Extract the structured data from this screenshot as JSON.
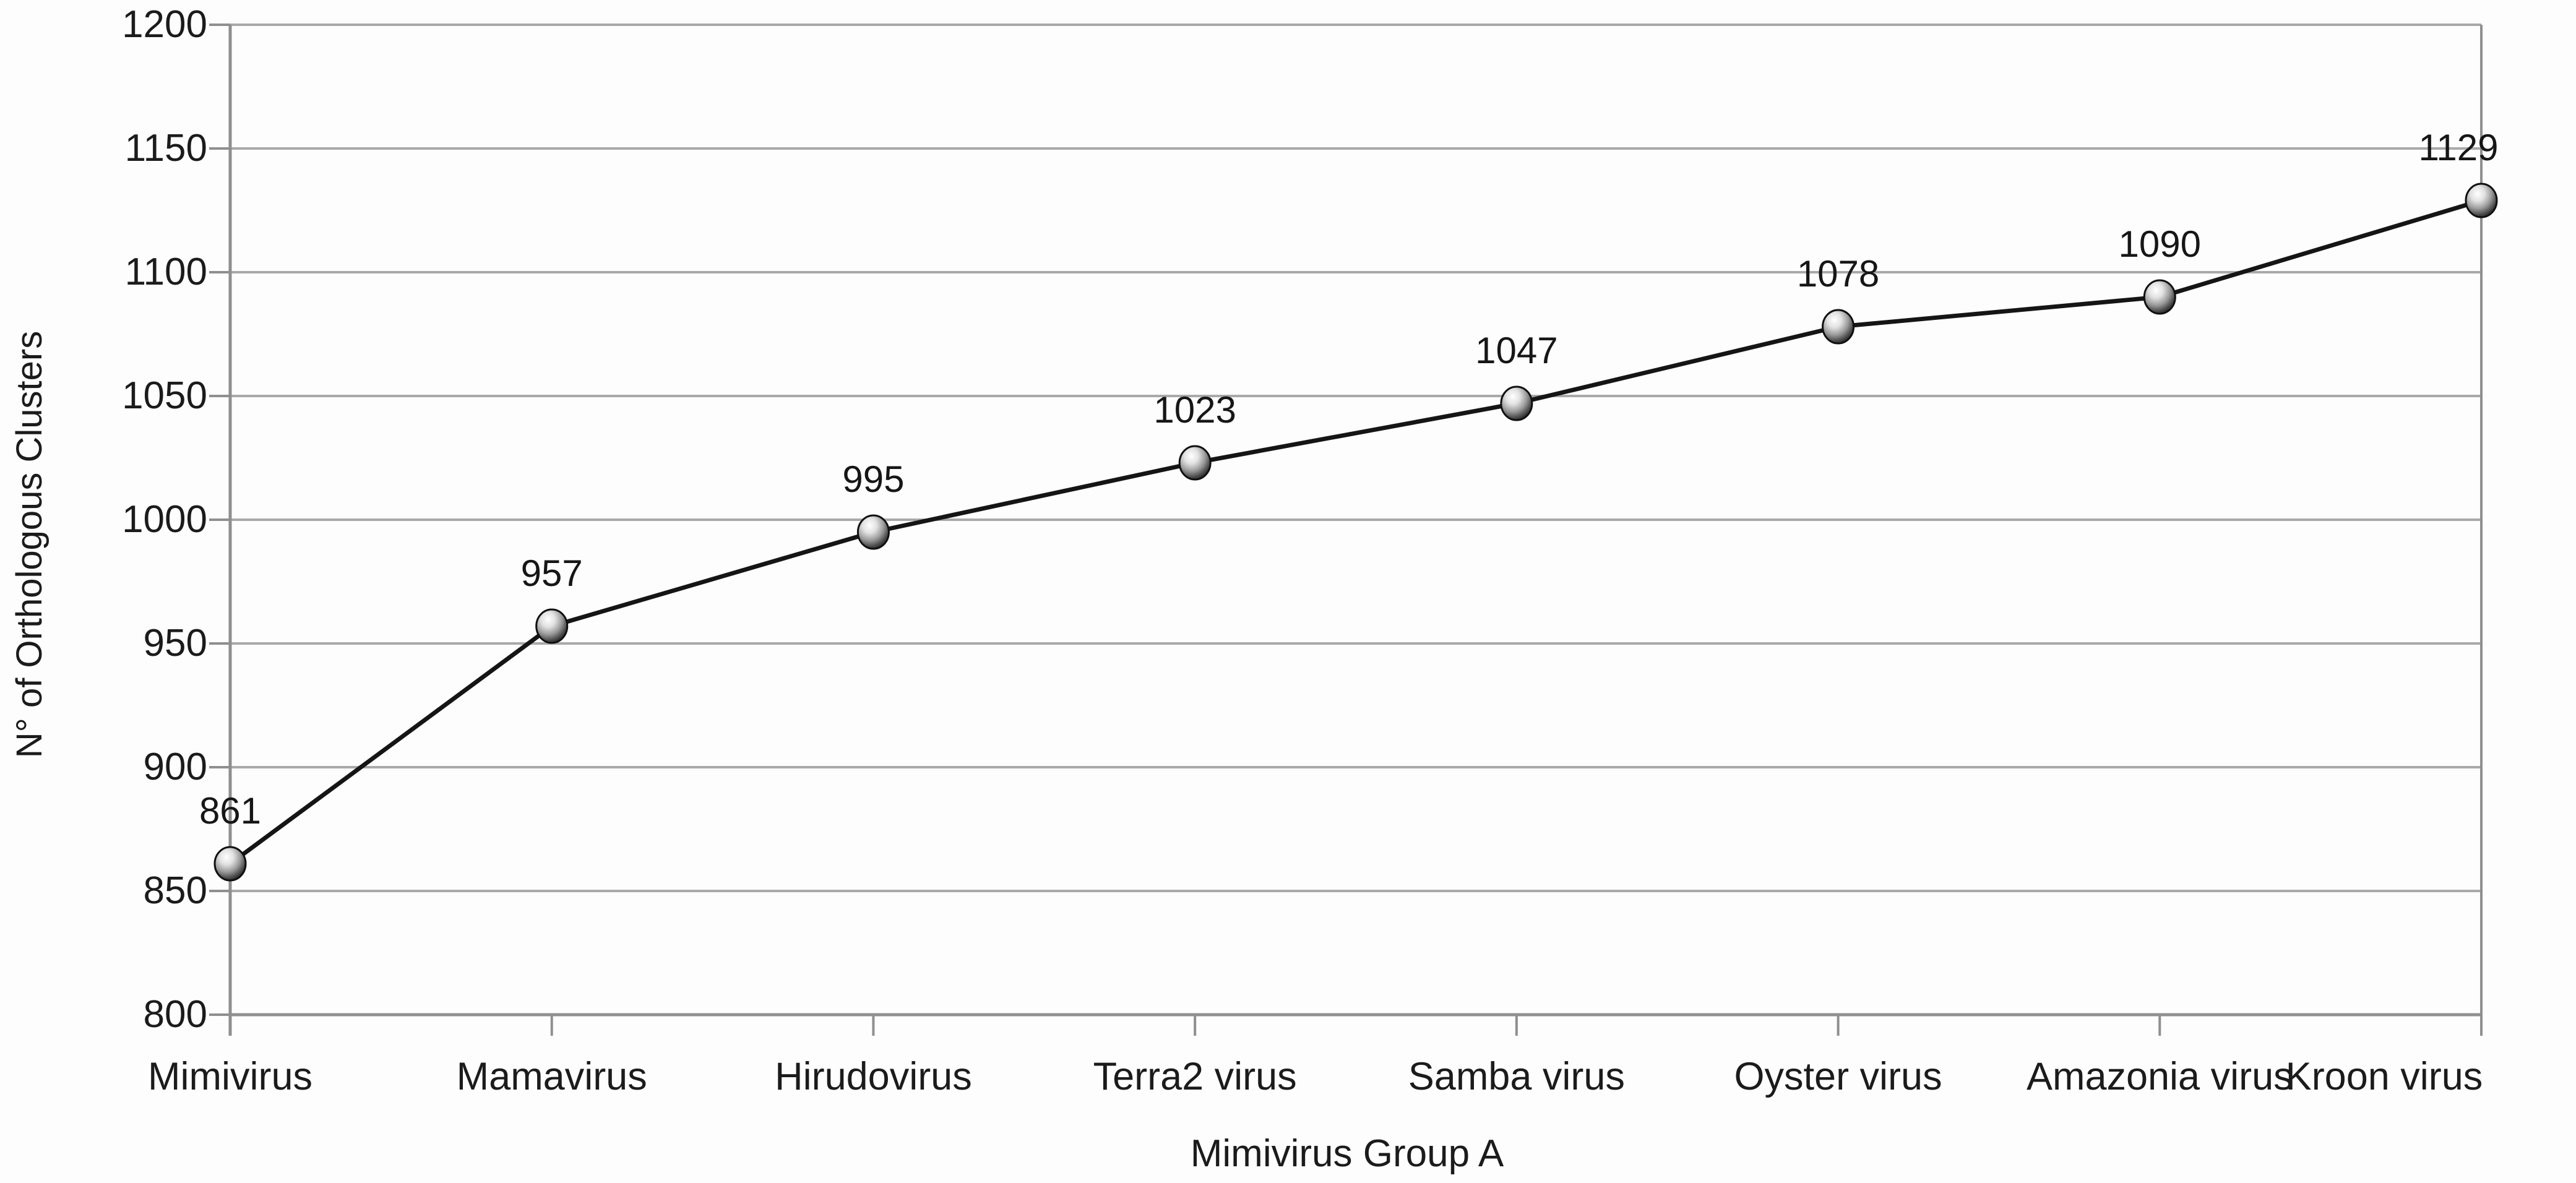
{
  "chart_data": {
    "type": "line",
    "title": "",
    "xlabel": "Mimivirus Group A",
    "ylabel": "N° of Orthologous Clusters",
    "categories": [
      "Mimivirus",
      "Mamavirus",
      "Hirudovirus",
      "Terra2 virus",
      "Samba virus",
      "Oyster virus",
      "Amazonia virus",
      "Kroon virus"
    ],
    "series": [
      {
        "name": "N° of Orthologous Clusters",
        "values": [
          861,
          957,
          995,
          1023,
          1047,
          1078,
          1090,
          1129
        ]
      }
    ],
    "data_point_labels": [
      "861",
      "957",
      "995",
      "1023",
      "1047",
      "1078",
      "1090",
      "1129"
    ],
    "yticks": [
      800,
      850,
      900,
      950,
      1000,
      1050,
      1100,
      1150,
      1200
    ],
    "ylim": [
      800,
      1200
    ],
    "grid": "horizontal",
    "legend_position": "none",
    "marker_style": "3d-sphere",
    "colors": {
      "line": "#151515",
      "grid": "#a9a9a9",
      "axis": "#8f8f8f",
      "text": "#1b1b1b",
      "background": "#fdfdfd",
      "marker_highlight": "#ffffff",
      "marker_shadow": "#1f1f1f"
    }
  }
}
